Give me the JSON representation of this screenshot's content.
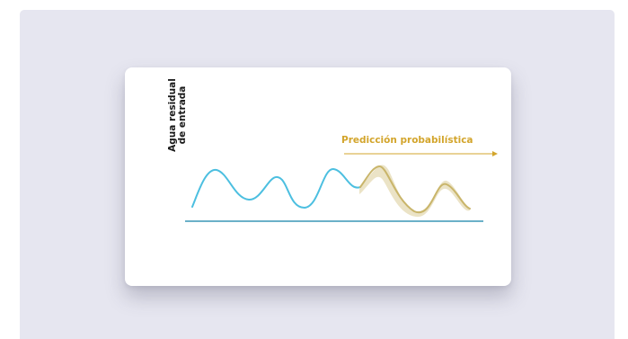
{
  "diagram": {
    "y_label_line1": "Agua residual",
    "y_label_line2": "de entrada",
    "forecast_label": "Predicción probabilística",
    "colors": {
      "background": "#e6e6f0",
      "card": "#ffffff",
      "observed_wave": "#4cbfe0",
      "forecast_wave": "#c9b56a",
      "forecast_band": "#e9e0c2",
      "forecast_text": "#d3a52c",
      "baseline": "#3a97b5"
    }
  }
}
